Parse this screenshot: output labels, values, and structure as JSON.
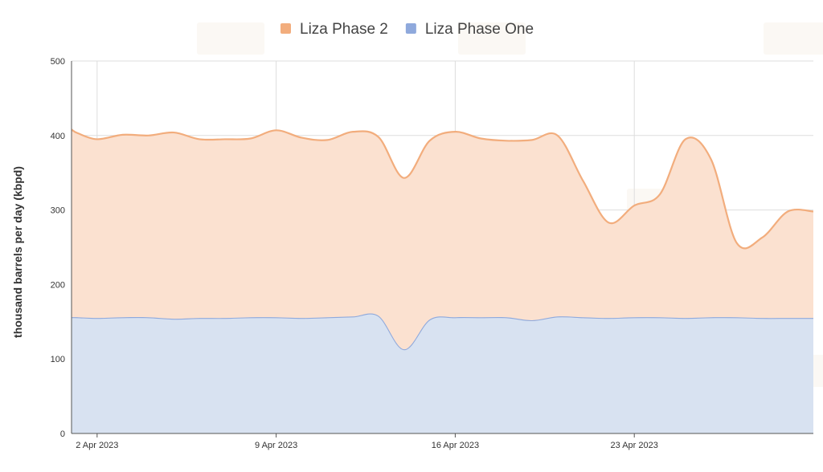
{
  "chart_data": {
    "type": "area",
    "stacked": true,
    "title": "",
    "xlabel": "",
    "ylabel": "thousand barrels per day (kbpd)",
    "ylim": [
      0,
      500
    ],
    "yticks": [
      "0",
      "100",
      "200",
      "300",
      "400",
      "500"
    ],
    "xticks": [
      {
        "day": 2,
        "label": "2 Apr 2023"
      },
      {
        "day": 9,
        "label": "9 Apr 2023"
      },
      {
        "day": 16,
        "label": "16 Apr 2023"
      },
      {
        "day": 23,
        "label": "23 Apr 2023"
      }
    ],
    "x_start_day": 1,
    "x_end_day": 30,
    "grid": true,
    "legend_position": "top-center",
    "x": [
      1,
      1.25,
      2,
      3,
      4,
      5,
      6,
      7,
      8,
      9,
      10,
      11,
      12,
      13,
      14,
      15,
      16,
      17,
      18,
      19,
      20,
      21,
      22,
      23,
      24,
      25,
      26,
      27,
      28,
      29,
      30
    ],
    "series": [
      {
        "name": "Liza Phase One",
        "color": "#8fa9dc",
        "fill": "#d8e2f1",
        "values": [
          156,
          156,
          155,
          156,
          156,
          154,
          155,
          155,
          156,
          156,
          155,
          156,
          157,
          158,
          113,
          153,
          156,
          156,
          156,
          152,
          157,
          156,
          155,
          156,
          156,
          155,
          156,
          156,
          155,
          155,
          155
        ]
      },
      {
        "name": "Liza Phase 2",
        "color": "#f2ad7d",
        "fill": "#fbe1d0",
        "values": [
          252,
          247,
          240,
          245,
          244,
          250,
          240,
          240,
          240,
          251,
          242,
          238,
          248,
          240,
          230,
          240,
          249,
          240,
          237,
          242,
          243,
          183,
          128,
          150,
          165,
          240,
          212,
          100,
          108,
          143,
          143
        ]
      }
    ],
    "legend_order": [
      "Liza Phase 2",
      "Liza Phase One"
    ]
  }
}
